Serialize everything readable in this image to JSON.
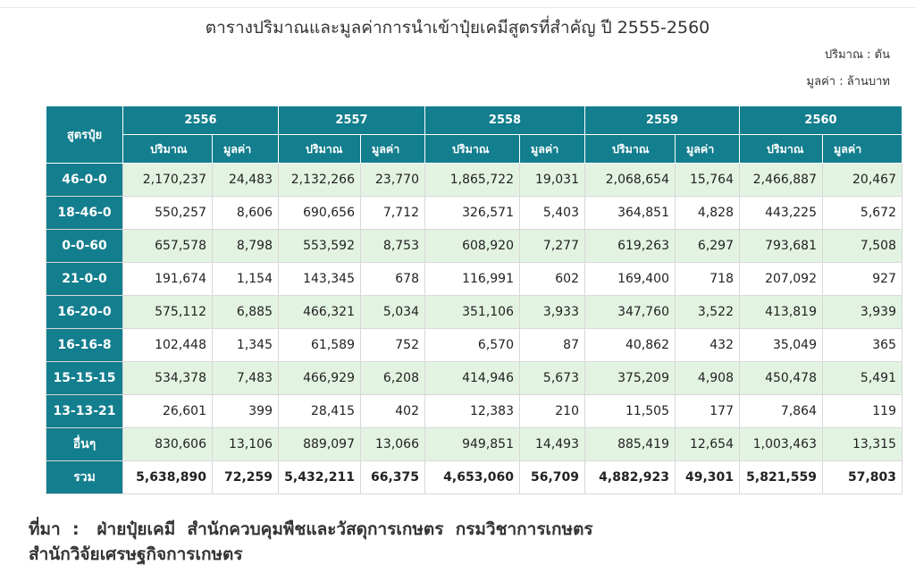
{
  "title": "ตารางปริมาณและมูลค่าการนำเข้าปุ๋ยเคมีสูตรที่สำคัญ ปี 2555-2560",
  "unit_quantity": "ปริมาณ : ตัน",
  "unit_value": "มูลค่า : ล้านบาท",
  "table": {
    "formula_header": "สูตรปุ๋ย",
    "years": [
      "2556",
      "2557",
      "2558",
      "2559",
      "2560"
    ],
    "qty_label": "ปริมาณ",
    "val_label": "มูลค่า",
    "rows": [
      {
        "formula": "46-0-0",
        "cells": [
          "2,170,237",
          "24,483",
          "2,132,266",
          "23,770",
          "1,865,722",
          "19,031",
          "2,068,654",
          "15,764",
          "2,466,887",
          "20,467"
        ]
      },
      {
        "formula": "18-46-0",
        "cells": [
          "550,257",
          "8,606",
          "690,656",
          "7,712",
          "326,571",
          "5,403",
          "364,851",
          "4,828",
          "443,225",
          "5,672"
        ]
      },
      {
        "formula": "0-0-60",
        "cells": [
          "657,578",
          "8,798",
          "553,592",
          "8,753",
          "608,920",
          "7,277",
          "619,263",
          "6,297",
          "793,681",
          "7,508"
        ]
      },
      {
        "formula": "21-0-0",
        "cells": [
          "191,674",
          "1,154",
          "143,345",
          "678",
          "116,991",
          "602",
          "169,400",
          "718",
          "207,092",
          "927"
        ]
      },
      {
        "formula": "16-20-0",
        "cells": [
          "575,112",
          "6,885",
          "466,321",
          "5,034",
          "351,106",
          "3,933",
          "347,760",
          "3,522",
          "413,819",
          "3,939"
        ]
      },
      {
        "formula": "16-16-8",
        "cells": [
          "102,448",
          "1,345",
          "61,589",
          "752",
          "6,570",
          "87",
          "40,862",
          "432",
          "35,049",
          "365"
        ]
      },
      {
        "formula": "15-15-15",
        "cells": [
          "534,378",
          "7,483",
          "466,929",
          "6,208",
          "414,946",
          "5,673",
          "375,209",
          "4,908",
          "450,478",
          "5,491"
        ]
      },
      {
        "formula": "13-13-21",
        "cells": [
          "26,601",
          "399",
          "28,415",
          "402",
          "12,383",
          "210",
          "11,505",
          "177",
          "7,864",
          "119"
        ]
      },
      {
        "formula": "อื่นๆ",
        "cells": [
          "830,606",
          "13,106",
          "889,097",
          "13,066",
          "949,851",
          "14,493",
          "885,419",
          "12,654",
          "1,003,463",
          "13,315"
        ]
      },
      {
        "formula": "รวม",
        "cells": [
          "5,638,890",
          "72,259",
          "5,432,211",
          "66,375",
          "4,653,060",
          "56,709",
          "4,882,923",
          "49,301",
          "5,821,559",
          "57,803"
        ]
      }
    ]
  },
  "source": {
    "line1": "ที่มา  :   ฝ่ายปุ๋ยเคมี  สำนักควบคุมพืชและวัสดุการเกษตร  กรมวิชาการเกษตร",
    "line2": "สำนักวิจัยเศรษฐกิจการเกษตร"
  }
}
